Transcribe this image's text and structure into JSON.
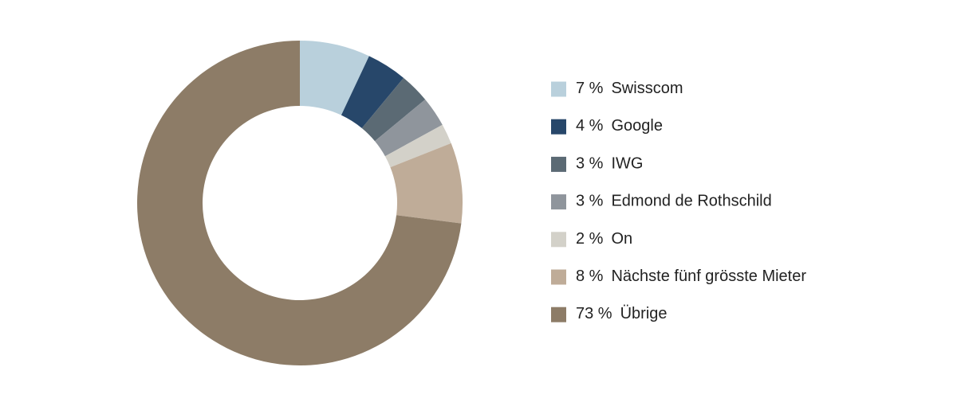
{
  "chart_data": {
    "type": "pie",
    "categories": [
      "Swisscom",
      "Google",
      "IWG",
      "Edmond de Rothschild",
      "On",
      "Nächste fünf grösste Mieter",
      "Übrige"
    ],
    "values": [
      7,
      4,
      3,
      3,
      2,
      8,
      73
    ],
    "value_labels": [
      "7 %",
      "4 %",
      "3 %",
      "3 %",
      "2 %",
      "8 %",
      "73 %"
    ],
    "colors": [
      "#b9d0dc",
      "#27476a",
      "#5b6a74",
      "#8f959c",
      "#d3d1c9",
      "#bfac98",
      "#8d7c67"
    ]
  }
}
